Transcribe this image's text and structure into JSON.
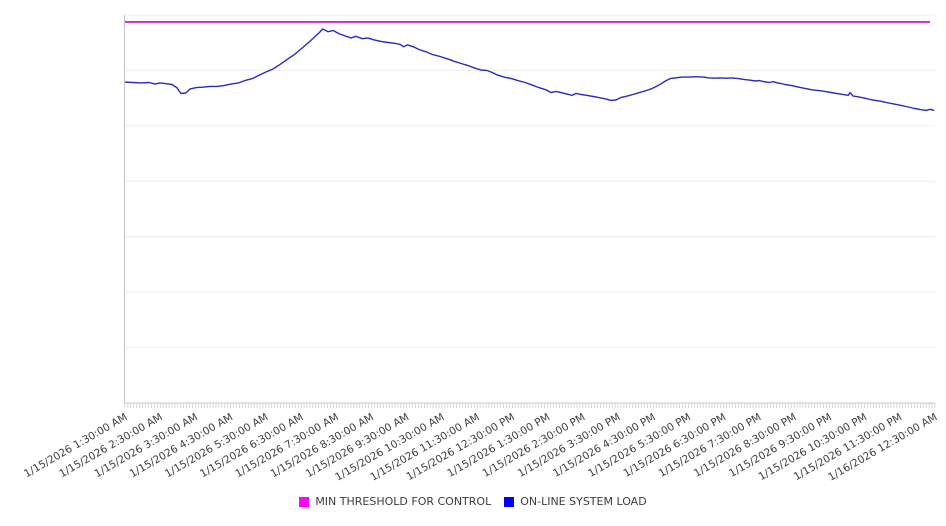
{
  "chart_data": {
    "type": "line",
    "x_axis": {
      "labels": [
        "1/15/2026 1:30:00 AM",
        "1/15/2026 2:30:00 AM",
        "1/15/2026 3:30:00 AM",
        "1/15/2026 4:30:00 AM",
        "1/15/2026 5:30:00 AM",
        "1/15/2026 6:30:00 AM",
        "1/15/2026 7:30:00 AM",
        "1/15/2026 8:30:00 AM",
        "1/15/2026 9:30:00 AM",
        "1/15/2026 10:30:00 AM",
        "1/15/2026 11:30:00 AM",
        "1/15/2026 12:30:00 PM",
        "1/15/2026 1:30:00 PM",
        "1/15/2026 2:30:00 PM",
        "1/15/2026 3:30:00 PM",
        "1/15/2026 4:30:00 PM",
        "1/15/2026 5:30:00 PM",
        "1/15/2026 6:30:00 PM",
        "1/15/2026 7:30:00 PM",
        "1/15/2026 8:30:00 PM",
        "1/15/2026 9:30:00 PM",
        "1/15/2026 10:30:00 PM",
        "1/15/2026 11:30:00 PM",
        "1/16/2026 12:30:00 AM"
      ],
      "label_rotation_deg": -30,
      "minor_tick_count": 277
    },
    "y_axis": {
      "tick_labels_visible": false,
      "range_percent": [
        0,
        100
      ],
      "gridlines": 7
    },
    "series": [
      {
        "name": "MIN THRESHOLD FOR CONTROL",
        "type": "threshold",
        "color": "#CC00CC",
        "value": 98.2
      },
      {
        "name": "ON-LINE SYSTEM LOAD",
        "type": "line",
        "color": "#2A2ABF",
        "points": [
          [
            0.0,
            82.7
          ],
          [
            0.01,
            82.6
          ],
          [
            0.02,
            82.5
          ],
          [
            0.03,
            82.6
          ],
          [
            0.037,
            82.2
          ],
          [
            0.043,
            82.5
          ],
          [
            0.051,
            82.3
          ],
          [
            0.058,
            82.1
          ],
          [
            0.064,
            81.3
          ],
          [
            0.069,
            79.8
          ],
          [
            0.075,
            79.9
          ],
          [
            0.08,
            80.9
          ],
          [
            0.088,
            81.3
          ],
          [
            0.096,
            81.4
          ],
          [
            0.105,
            81.6
          ],
          [
            0.114,
            81.6
          ],
          [
            0.122,
            81.8
          ],
          [
            0.131,
            82.2
          ],
          [
            0.14,
            82.5
          ],
          [
            0.148,
            83.1
          ],
          [
            0.157,
            83.6
          ],
          [
            0.165,
            84.4
          ],
          [
            0.174,
            85.3
          ],
          [
            0.183,
            86.1
          ],
          [
            0.191,
            87.2
          ],
          [
            0.2,
            88.5
          ],
          [
            0.209,
            89.8
          ],
          [
            0.217,
            91.2
          ],
          [
            0.226,
            92.8
          ],
          [
            0.233,
            94.1
          ],
          [
            0.24,
            95.5
          ],
          [
            0.244,
            96.4
          ],
          [
            0.251,
            95.7
          ],
          [
            0.257,
            96.0
          ],
          [
            0.264,
            95.2
          ],
          [
            0.272,
            94.6
          ],
          [
            0.279,
            94.1
          ],
          [
            0.285,
            94.5
          ],
          [
            0.293,
            93.9
          ],
          [
            0.3,
            94.1
          ],
          [
            0.307,
            93.6
          ],
          [
            0.316,
            93.2
          ],
          [
            0.325,
            92.9
          ],
          [
            0.333,
            92.7
          ],
          [
            0.34,
            92.4
          ],
          [
            0.344,
            91.8
          ],
          [
            0.349,
            92.3
          ],
          [
            0.356,
            91.8
          ],
          [
            0.363,
            91.1
          ],
          [
            0.372,
            90.5
          ],
          [
            0.38,
            89.8
          ],
          [
            0.389,
            89.3
          ],
          [
            0.398,
            88.7
          ],
          [
            0.406,
            88.1
          ],
          [
            0.415,
            87.5
          ],
          [
            0.423,
            87.0
          ],
          [
            0.432,
            86.3
          ],
          [
            0.44,
            85.8
          ],
          [
            0.447,
            85.7
          ],
          [
            0.453,
            85.2
          ],
          [
            0.46,
            84.5
          ],
          [
            0.468,
            84.0
          ],
          [
            0.477,
            83.6
          ],
          [
            0.485,
            83.1
          ],
          [
            0.494,
            82.6
          ],
          [
            0.502,
            82.0
          ],
          [
            0.511,
            81.3
          ],
          [
            0.52,
            80.7
          ],
          [
            0.526,
            80.0
          ],
          [
            0.532,
            80.3
          ],
          [
            0.538,
            80.0
          ],
          [
            0.546,
            79.6
          ],
          [
            0.552,
            79.3
          ],
          [
            0.557,
            79.8
          ],
          [
            0.563,
            79.5
          ],
          [
            0.57,
            79.3
          ],
          [
            0.578,
            79.0
          ],
          [
            0.585,
            78.7
          ],
          [
            0.593,
            78.4
          ],
          [
            0.6,
            78.0
          ],
          [
            0.606,
            78.1
          ],
          [
            0.612,
            78.7
          ],
          [
            0.62,
            79.1
          ],
          [
            0.627,
            79.5
          ],
          [
            0.635,
            80.0
          ],
          [
            0.642,
            80.4
          ],
          [
            0.649,
            80.9
          ],
          [
            0.656,
            81.6
          ],
          [
            0.662,
            82.3
          ],
          [
            0.668,
            83.1
          ],
          [
            0.673,
            83.6
          ],
          [
            0.679,
            83.8
          ],
          [
            0.688,
            84.0
          ],
          [
            0.696,
            84.0
          ],
          [
            0.705,
            84.1
          ],
          [
            0.714,
            84.0
          ],
          [
            0.721,
            83.8
          ],
          [
            0.728,
            83.7
          ],
          [
            0.735,
            83.8
          ],
          [
            0.742,
            83.7
          ],
          [
            0.749,
            83.8
          ],
          [
            0.757,
            83.6
          ],
          [
            0.764,
            83.4
          ],
          [
            0.772,
            83.2
          ],
          [
            0.778,
            83.0
          ],
          [
            0.783,
            83.1
          ],
          [
            0.789,
            82.8
          ],
          [
            0.795,
            82.6
          ],
          [
            0.8,
            82.8
          ],
          [
            0.806,
            82.5
          ],
          [
            0.815,
            82.1
          ],
          [
            0.823,
            81.8
          ],
          [
            0.832,
            81.4
          ],
          [
            0.841,
            81.0
          ],
          [
            0.849,
            80.7
          ],
          [
            0.858,
            80.5
          ],
          [
            0.867,
            80.2
          ],
          [
            0.875,
            79.9
          ],
          [
            0.884,
            79.6
          ],
          [
            0.893,
            79.3
          ],
          [
            0.895,
            80.0
          ],
          [
            0.899,
            79.1
          ],
          [
            0.906,
            78.9
          ],
          [
            0.915,
            78.5
          ],
          [
            0.923,
            78.1
          ],
          [
            0.932,
            77.8
          ],
          [
            0.941,
            77.4
          ],
          [
            0.949,
            77.1
          ],
          [
            0.958,
            76.7
          ],
          [
            0.967,
            76.3
          ],
          [
            0.975,
            75.9
          ],
          [
            0.983,
            75.6
          ],
          [
            0.989,
            75.4
          ],
          [
            0.994,
            75.7
          ],
          [
            0.999,
            75.4
          ]
        ]
      }
    ],
    "legend": {
      "position": "bottom",
      "items": [
        {
          "label": "MIN THRESHOLD FOR CONTROL",
          "color": "#FF00FF"
        },
        {
          "label": "ON-LINE SYSTEM LOAD",
          "color": "#0000FF"
        }
      ]
    },
    "colors": {
      "gridline": "#ededed",
      "axis": "#c8c8c8",
      "label_text": "#3d3d3d",
      "background": "#ffffff"
    }
  }
}
